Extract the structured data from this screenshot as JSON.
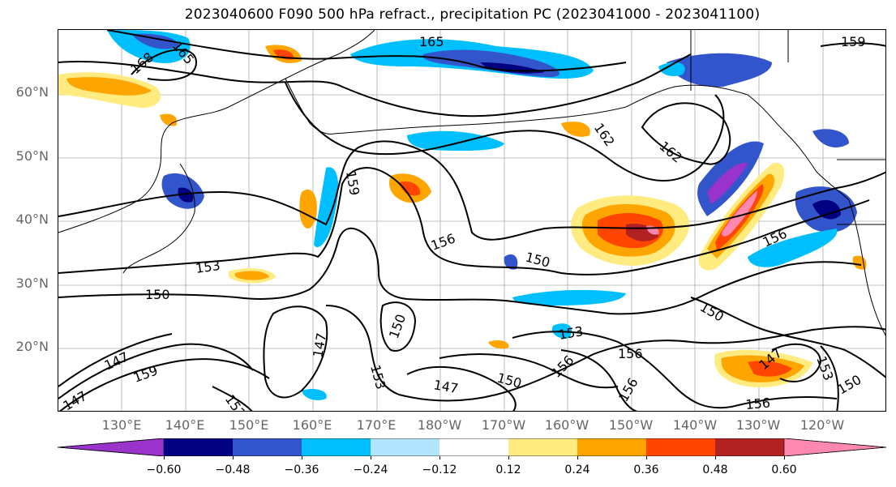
{
  "title": "2023040600 F090 500 hPa refract., precipitation PC (2023041000 - 2023041100)",
  "lat_labels": [
    "60°N",
    "50°N",
    "40°N",
    "30°N",
    "20°N"
  ],
  "lon_labels": [
    "130°E",
    "140°E",
    "150°E",
    "160°E",
    "170°E",
    "180°W",
    "170°W",
    "160°W",
    "150°W",
    "140°W",
    "130°W",
    "120°W"
  ],
  "contour_labels": [
    "165",
    "168",
    "165",
    "159",
    "162",
    "162",
    "159",
    "156",
    "156",
    "153",
    "150",
    "150",
    "150",
    "150",
    "147",
    "147",
    "153",
    "147",
    "150",
    "153",
    "156",
    "156",
    "156",
    "147",
    "153",
    "150",
    "156",
    "147",
    "159",
    "152"
  ],
  "colorbar": {
    "ticks": [
      "−0.60",
      "−0.48",
      "−0.36",
      "−0.24",
      "−0.12",
      "0.12",
      "0.24",
      "0.36",
      "0.48",
      "0.60"
    ],
    "colors": [
      "#9933cc",
      "#000080",
      "#3355cc",
      "#00bfff",
      "#b3e5ff",
      "#ffffff",
      "#ffeb80",
      "#ffa500",
      "#ff4500",
      "#b22222",
      "#ff88b0"
    ]
  }
}
